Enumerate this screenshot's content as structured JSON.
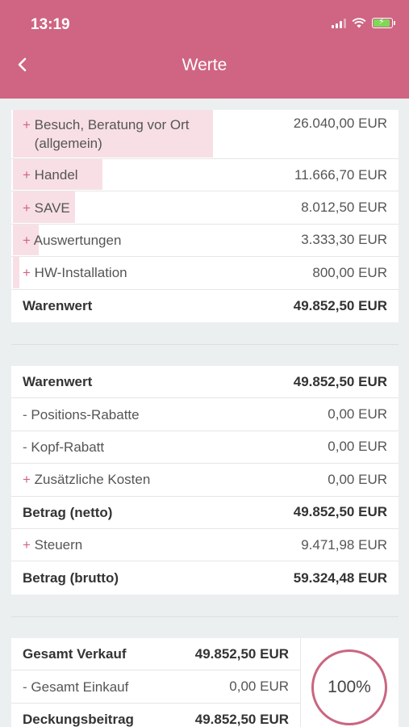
{
  "status": {
    "time": "13:19"
  },
  "header": {
    "title": "Werte"
  },
  "colors": {
    "accent": "#cf6583",
    "bar": "#f8dfe6",
    "battery": "#7ed957"
  },
  "items": [
    {
      "sign": "+",
      "label": "Besuch, Beratung vor Ort (allgemein)",
      "value": "26.040,00 EUR",
      "share": 0.522
    },
    {
      "sign": "+",
      "label": "Handel",
      "value": "11.666,70 EUR",
      "share": 0.234
    },
    {
      "sign": "+",
      "label": "SAVE",
      "value": "8.012,50 EUR",
      "share": 0.161
    },
    {
      "sign": "+",
      "label": "Auswertungen",
      "value": "3.333,30 EUR",
      "share": 0.067
    },
    {
      "sign": "+",
      "label": "HW-Installation",
      "value": "800,00 EUR",
      "share": 0.016
    }
  ],
  "items_total": {
    "label": "Warenwert",
    "value": "49.852,50 EUR"
  },
  "summary": [
    {
      "sign": "",
      "label": "Warenwert",
      "value": "49.852,50 EUR",
      "bold": true
    },
    {
      "sign": "-",
      "label": "Positions-Rabatte",
      "value": "0,00 EUR",
      "bold": false
    },
    {
      "sign": "-",
      "label": "Kopf-Rabatt",
      "value": "0,00 EUR",
      "bold": false
    },
    {
      "sign": "+",
      "label": "Zusätzliche Kosten",
      "value": "0,00 EUR",
      "bold": false
    },
    {
      "sign": "",
      "label": "Betrag (netto)",
      "value": "49.852,50 EUR",
      "bold": true
    },
    {
      "sign": "+",
      "label": "Steuern",
      "value": "9.471,98 EUR",
      "bold": false
    },
    {
      "sign": "",
      "label": "Betrag (brutto)",
      "value": "59.324,48 EUR",
      "bold": true
    }
  ],
  "margin": {
    "rows": [
      {
        "sign": "",
        "label": "Gesamt Verkauf",
        "value": "49.852,50 EUR",
        "bold": true
      },
      {
        "sign": "-",
        "label": "Gesamt Einkauf",
        "value": "0,00 EUR",
        "bold": false
      },
      {
        "sign": "",
        "label": "Deckungsbeitrag",
        "value": "49.852,50 EUR",
        "bold": true
      }
    ],
    "percent": "100%"
  }
}
